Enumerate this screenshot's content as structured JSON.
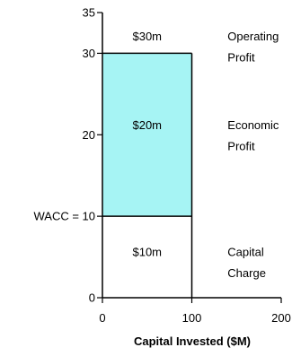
{
  "chart_data": {
    "type": "bar",
    "xlabel": "Capital Invested ($M)",
    "ylabel": "",
    "xlim": [
      0,
      200
    ],
    "ylim": [
      0,
      35
    ],
    "xticks": [
      0,
      100,
      200
    ],
    "yticks": [
      {
        "value": 0,
        "label": "0"
      },
      {
        "value": 10,
        "label": "WACC = 10"
      },
      {
        "value": 20,
        "label": "20"
      },
      {
        "value": 30,
        "label": "30"
      },
      {
        "value": 35,
        "label": "35"
      }
    ],
    "capital_invested": 100,
    "wacc": 10,
    "return_level": 30,
    "grid": false,
    "colors": {
      "economic_profit": "#a6f4f4",
      "capital_charge": "#ffffff",
      "outline": "#000000"
    },
    "segments": [
      {
        "y0": 10,
        "y1": 30,
        "fill": "economic_profit"
      },
      {
        "y0": 0,
        "y1": 10,
        "fill": "capital_charge"
      }
    ],
    "annotations": [
      {
        "text": "$30m",
        "x": 50,
        "y": 32.1
      },
      {
        "text": "$20m",
        "x": 50,
        "y": 21.2
      },
      {
        "text": "$10m",
        "x": 50,
        "y": 5.6
      },
      {
        "text": "Operating",
        "x": 140,
        "y": 32.1
      },
      {
        "text": "Profit",
        "x": 140,
        "y": 29.5
      },
      {
        "text": "Economic",
        "x": 140,
        "y": 21.2
      },
      {
        "text": "Profit",
        "x": 140,
        "y": 18.6
      },
      {
        "text": "Capital",
        "x": 140,
        "y": 5.6
      },
      {
        "text": "Charge",
        "x": 140,
        "y": 3.0
      }
    ]
  }
}
